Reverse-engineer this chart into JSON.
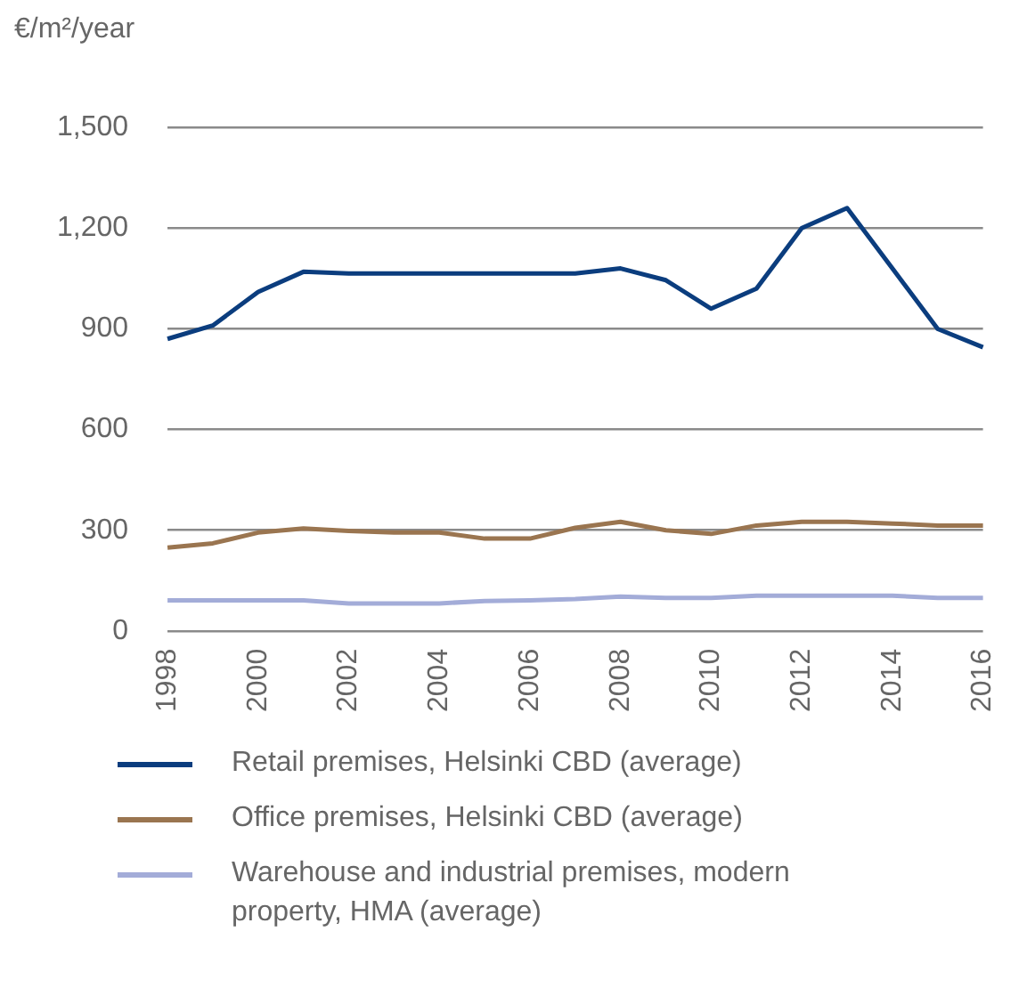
{
  "chart_data": {
    "type": "line",
    "ylabel": "€/m²/year",
    "categories": [
      "1998",
      null,
      "2000",
      null,
      "2002",
      null,
      "2004",
      null,
      "2006",
      null,
      "2008",
      null,
      "2010",
      null,
      "2012",
      null,
      "2014",
      null,
      "2016"
    ],
    "series": [
      {
        "name": "Retail premises, Helsinki CBD (average)",
        "color": "#0b3d7e",
        "values": [
          870,
          910,
          1010,
          1070,
          1065,
          1065,
          1065,
          1065,
          1065,
          1065,
          1080,
          1045,
          960,
          1020,
          1200,
          1260,
          1080,
          900,
          845
        ]
      },
      {
        "name": "Office premises, Helsinki CBD (average)",
        "color": "#9a7550",
        "values": [
          248,
          261,
          293,
          305,
          298,
          293,
          293,
          275,
          275,
          307,
          325,
          300,
          289,
          314,
          325,
          325,
          320,
          314,
          314
        ]
      },
      {
        "name": "Warehouse and industrial premises, modern property, HMA (average)",
        "color": "#a3acd8",
        "values": [
          91,
          91,
          91,
          91,
          82,
          82,
          82,
          89,
          91,
          95,
          102,
          98,
          98,
          105,
          105,
          105,
          105,
          98,
          98
        ]
      }
    ],
    "ylim": [
      0,
      1500
    ],
    "yticks": [
      0,
      300,
      600,
      900,
      {
        "value": 1200,
        "label": "1,200"
      },
      {
        "value": 1500,
        "label": "1,500"
      }
    ],
    "grid": "y",
    "legend": "bottom",
    "marker": "none",
    "line_style": "solid"
  }
}
